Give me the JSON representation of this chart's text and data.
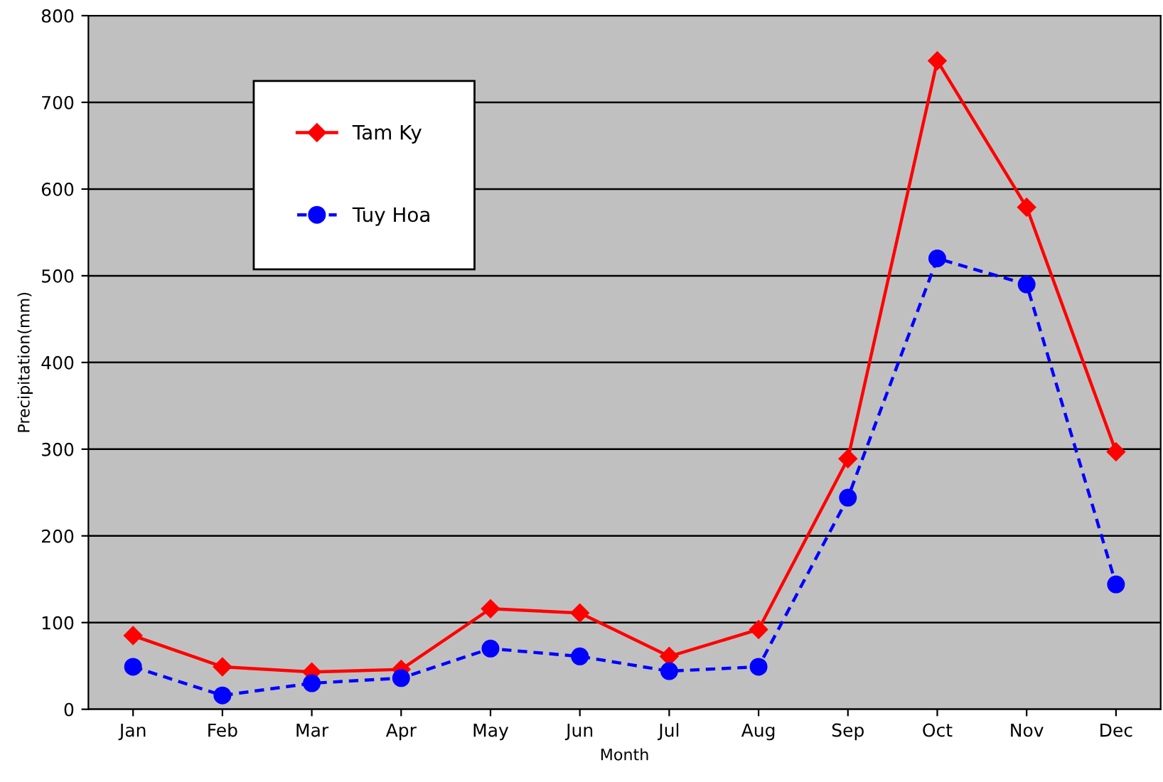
{
  "chart_data": {
    "type": "line",
    "xlabel": "Month",
    "ylabel": "Precipitation(mm)",
    "categories": [
      "Jan",
      "Feb",
      "Mar",
      "Apr",
      "May",
      "Jun",
      "Jul",
      "Aug",
      "Sep",
      "Oct",
      "Nov",
      "Dec"
    ],
    "series": [
      {
        "name": "Tam Ky",
        "color": "#ff0000",
        "marker": "diamond",
        "line_style": "solid",
        "values": [
          85,
          49,
          43,
          46,
          116,
          111,
          61,
          92,
          289,
          748,
          579,
          297
        ]
      },
      {
        "name": "Tuy Hoa",
        "color": "#0000ff",
        "marker": "circle",
        "line_style": "dashed",
        "values": [
          49,
          16,
          30,
          36,
          70,
          61,
          44,
          49,
          244,
          520,
          490,
          144
        ]
      }
    ],
    "ylim": [
      0,
      800
    ],
    "yticks": [
      0,
      100,
      200,
      300,
      400,
      500,
      600,
      700,
      800
    ],
    "grid": "y",
    "legend": "top left"
  }
}
